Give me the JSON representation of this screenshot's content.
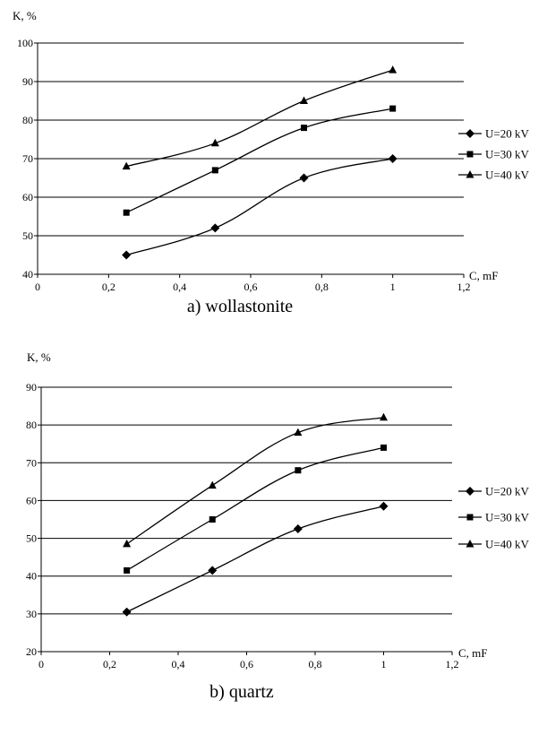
{
  "chart_data": [
    {
      "type": "line",
      "caption": "a) wollastonite",
      "ylabel": "K, %",
      "xlabel": "C, mF",
      "x_ticks": [
        "0",
        "0,2",
        "0,4",
        "0,6",
        "0,8",
        "1",
        "1,2"
      ],
      "y_ticks": [
        "40",
        "50",
        "60",
        "70",
        "80",
        "90",
        "100"
      ],
      "xlim": [
        0,
        1.2
      ],
      "ylim": [
        40,
        100
      ],
      "grid": "horizontal",
      "legend_position": "right",
      "x": [
        0.25,
        0.5,
        0.75,
        1.0
      ],
      "series": [
        {
          "name": "U=20 kV",
          "marker": "diamond",
          "values": [
            45,
            52,
            65,
            70
          ]
        },
        {
          "name": "U=30 kV",
          "marker": "square",
          "values": [
            56,
            67,
            78,
            83
          ]
        },
        {
          "name": "U=40 kV",
          "marker": "triangle",
          "values": [
            68,
            74,
            85,
            93
          ]
        }
      ]
    },
    {
      "type": "line",
      "caption": "b) quartz",
      "ylabel": "K, %",
      "xlabel": "C, mF",
      "x_ticks": [
        "0",
        "0,2",
        "0,4",
        "0,6",
        "0,8",
        "1",
        "1,2"
      ],
      "y_ticks": [
        "20",
        "30",
        "40",
        "50",
        "60",
        "70",
        "80",
        "90"
      ],
      "xlim": [
        0,
        1.2
      ],
      "ylim": [
        20,
        90
      ],
      "grid": "horizontal",
      "legend_position": "right",
      "x": [
        0.25,
        0.5,
        0.75,
        1.0
      ],
      "series": [
        {
          "name": "U=20 kV",
          "marker": "diamond",
          "values": [
            30.5,
            41.5,
            52.5,
            58.5
          ]
        },
        {
          "name": "U=30 kV",
          "marker": "square",
          "values": [
            41.5,
            55,
            68,
            74
          ]
        },
        {
          "name": "U=40 kV",
          "marker": "triangle",
          "values": [
            48.5,
            64,
            78,
            82
          ]
        }
      ]
    }
  ],
  "colors": {
    "line": "#000000",
    "grid": "#000000",
    "background": "#ffffff"
  }
}
